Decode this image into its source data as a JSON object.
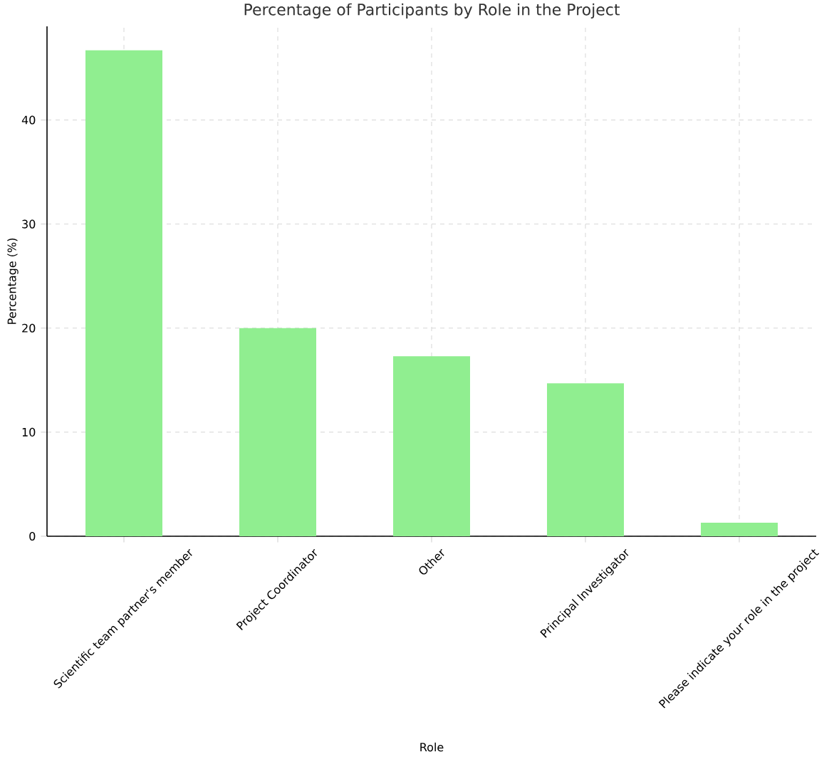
{
  "chart_data": {
    "type": "bar",
    "title": "Percentage of Participants by Role in the Project",
    "xlabel": "Role",
    "ylabel": "Percentage (%)",
    "categories": [
      "Scientific team partner's member",
      "Project Coordinator",
      "Other",
      "Principal Investigator",
      "Please indicate your role in the project"
    ],
    "values": [
      46.7,
      20.0,
      17.3,
      14.7,
      1.3
    ],
    "color": "#90ee90",
    "ylim": [
      0,
      49
    ],
    "yticks": [
      0,
      10,
      20,
      30,
      40
    ],
    "grid": true
  }
}
